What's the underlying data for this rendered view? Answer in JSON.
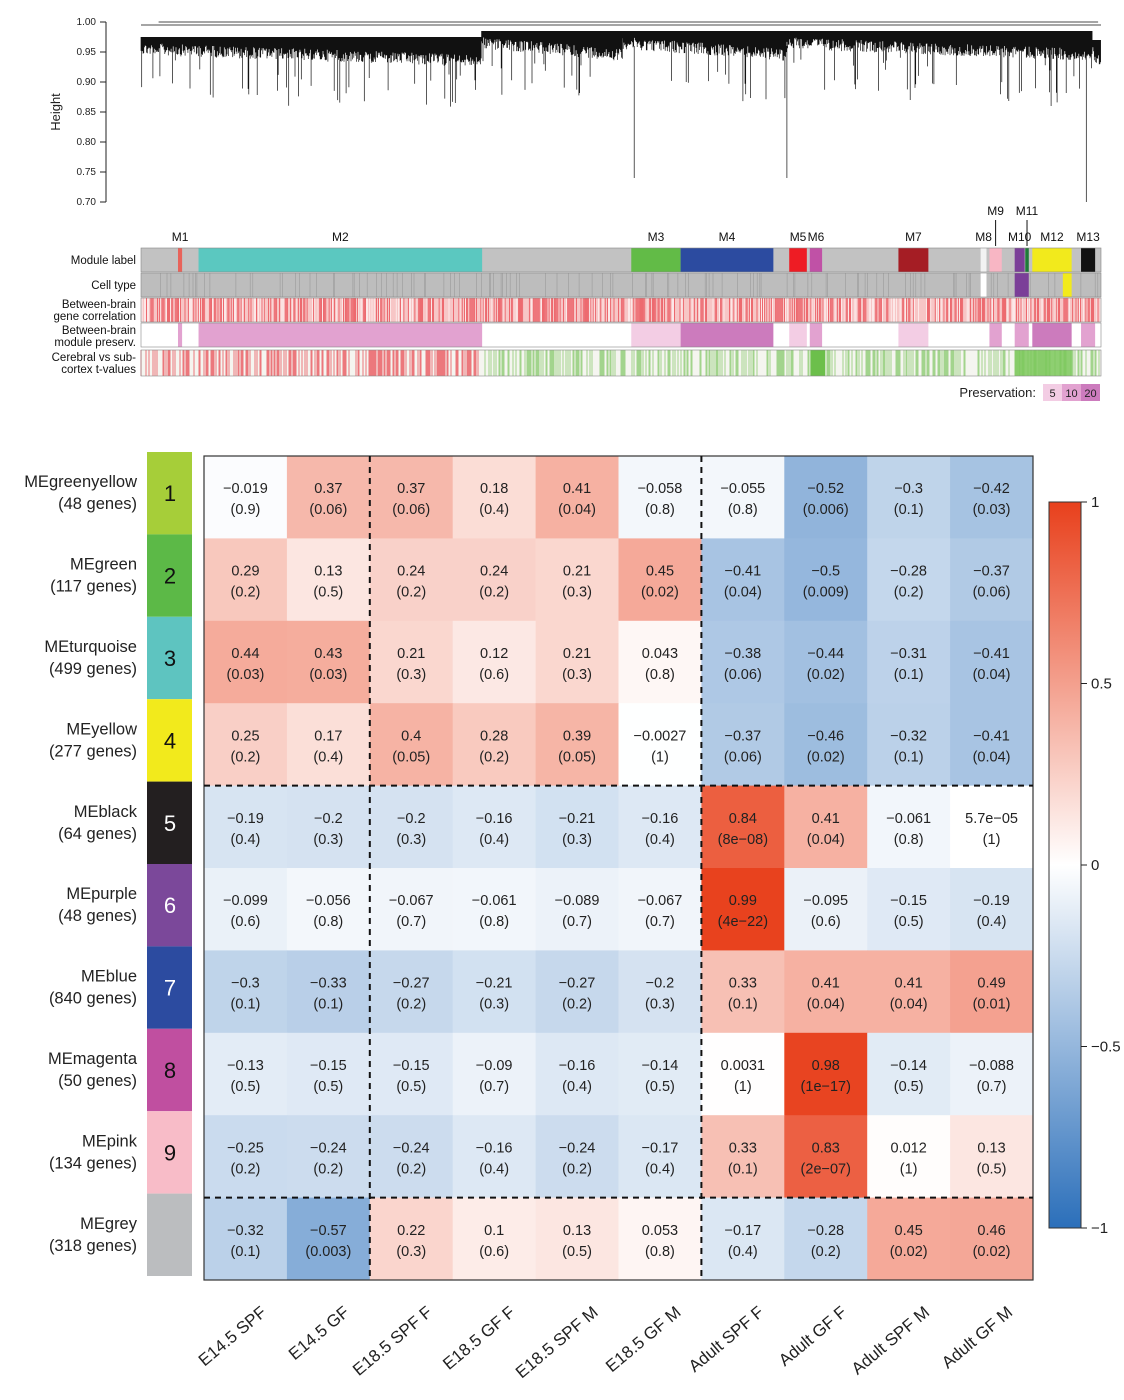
{
  "chart_data": [
    {
      "type": "dendrogram",
      "ylabel": "Height",
      "ylim": [
        0.7,
        1.0
      ],
      "yticks": [
        "0.70",
        "0.75",
        "0.80",
        "0.85",
        "0.90",
        "0.95",
        "1.00"
      ],
      "modules": [
        {
          "label": "M1",
          "color": "#e8635a",
          "frac": [
            0.063,
            0.07
          ]
        },
        {
          "label": "M2",
          "color": "#5bc8c0",
          "frac": [
            0.098,
            0.581
          ]
        },
        {
          "label": "M3",
          "color": "#62bb47",
          "frac": [
            0.835,
            0.919
          ]
        },
        {
          "label": "M4",
          "color": "#2c4ba0",
          "frac": [
            0.919,
            1.077
          ]
        },
        {
          "label": "M5",
          "color": "#ee1c24",
          "frac": [
            1.104,
            1.134
          ]
        },
        {
          "label": "M6",
          "color": "#c051a6",
          "frac": [
            1.139,
            1.16
          ]
        },
        {
          "label": "M7",
          "color": "#a51d24",
          "frac": [
            1.29,
            1.341
          ]
        },
        {
          "label": "M8",
          "color": "#f2f2f2",
          "frac": [
            1.43,
            1.44
          ]
        },
        {
          "label": "M9",
          "color": "#f8b6c4",
          "frac": [
            1.445,
            1.466
          ]
        },
        {
          "label": "M10",
          "color": "#7b3f98",
          "frac": [
            1.488,
            1.505
          ]
        },
        {
          "label": "M11",
          "color": "#1e7b3a",
          "frac": [
            1.506,
            1.512
          ]
        },
        {
          "label": "M12",
          "color": "#f2ea1c",
          "frac": [
            1.518,
            1.585
          ]
        },
        {
          "label": "M13",
          "color": "#111111",
          "frac": [
            1.601,
            1.625
          ]
        }
      ],
      "track_labels": [
        "Module label",
        "Cell type",
        "Between-brain\ngene correlation",
        "Between-brain\nmodule preserv.",
        "Cerebral vs sub-\ncortex t-values"
      ],
      "preservation_legend": {
        "title": "Preservation:",
        "levels": [
          "5",
          "10",
          "20"
        ],
        "colors": [
          "#f3cde4",
          "#e2a2d0",
          "#cc7bbd"
        ]
      }
    },
    {
      "type": "heatmap",
      "rows": [
        {
          "name": "MEgreenyellow",
          "genes": "(48 genes)",
          "num": "1",
          "color": "#a6ce39"
        },
        {
          "name": "MEgreen",
          "genes": "(117 genes)",
          "num": "2",
          "color": "#5cb947"
        },
        {
          "name": "MEturquoise",
          "genes": "(499 genes)",
          "num": "3",
          "color": "#5ec4c0"
        },
        {
          "name": "MEyellow",
          "genes": "(277 genes)",
          "num": "4",
          "color": "#f2ea1c"
        },
        {
          "name": "MEblack",
          "genes": "(64 genes)",
          "num": "5",
          "color": "#231f20"
        },
        {
          "name": "MEpurple",
          "genes": "(48 genes)",
          "num": "6",
          "color": "#7b489a"
        },
        {
          "name": "MEblue",
          "genes": "(840 genes)",
          "num": "7",
          "color": "#2c4ba0"
        },
        {
          "name": "MEmagenta",
          "genes": "(50 genes)",
          "num": "8",
          "color": "#c04fa0"
        },
        {
          "name": "MEpink",
          "genes": "(134 genes)",
          "num": "9",
          "color": "#f8bcc8"
        },
        {
          "name": "MEgrey",
          "genes": "(318 genes)",
          "num": "",
          "color": "#bbbdbf"
        }
      ],
      "columns": [
        "E14.5 SPF",
        "E14.5 GF",
        "E18.5 SPF F",
        "E18.5 GF F",
        "E18.5 SPF M",
        "E18.5 GF M",
        "Adult SPF F",
        "Adult GF F",
        "Adult SPF M",
        "Adult GF M"
      ],
      "values": [
        [
          -0.019,
          0.37,
          0.37,
          0.18,
          0.41,
          -0.058,
          -0.055,
          -0.52,
          -0.3,
          -0.42
        ],
        [
          0.29,
          0.13,
          0.24,
          0.24,
          0.21,
          0.45,
          -0.41,
          -0.5,
          -0.28,
          -0.37
        ],
        [
          0.44,
          0.43,
          0.21,
          0.12,
          0.21,
          0.043,
          -0.38,
          -0.44,
          -0.31,
          -0.41
        ],
        [
          0.25,
          0.17,
          0.4,
          0.28,
          0.39,
          -0.0027,
          -0.37,
          -0.46,
          -0.32,
          -0.41
        ],
        [
          -0.19,
          -0.2,
          -0.2,
          -0.16,
          -0.21,
          -0.16,
          0.84,
          0.41,
          -0.061,
          5.7e-05
        ],
        [
          -0.099,
          -0.056,
          -0.067,
          -0.061,
          -0.089,
          -0.067,
          0.99,
          -0.095,
          -0.15,
          -0.19
        ],
        [
          -0.3,
          -0.33,
          -0.27,
          -0.21,
          -0.27,
          -0.2,
          0.33,
          0.41,
          0.41,
          0.49
        ],
        [
          -0.13,
          -0.15,
          -0.15,
          -0.09,
          -0.16,
          -0.14,
          0.0031,
          0.98,
          -0.14,
          -0.088
        ],
        [
          -0.25,
          -0.24,
          -0.24,
          -0.16,
          -0.24,
          -0.17,
          0.33,
          0.83,
          0.012,
          0.13
        ],
        [
          -0.32,
          -0.57,
          0.22,
          0.1,
          0.13,
          0.053,
          -0.17,
          -0.28,
          0.45,
          0.46
        ]
      ],
      "value_labels": [
        [
          "−0.019",
          "0.37",
          "0.37",
          "0.18",
          "0.41",
          "−0.058",
          "−0.055",
          "−0.52",
          "−0.3",
          "−0.42"
        ],
        [
          "0.29",
          "0.13",
          "0.24",
          "0.24",
          "0.21",
          "0.45",
          "−0.41",
          "−0.5",
          "−0.28",
          "−0.37"
        ],
        [
          "0.44",
          "0.43",
          "0.21",
          "0.12",
          "0.21",
          "0.043",
          "−0.38",
          "−0.44",
          "−0.31",
          "−0.41"
        ],
        [
          "0.25",
          "0.17",
          "0.4",
          "0.28",
          "0.39",
          "−0.0027",
          "−0.37",
          "−0.46",
          "−0.32",
          "−0.41"
        ],
        [
          "−0.19",
          "−0.2",
          "−0.2",
          "−0.16",
          "−0.21",
          "−0.16",
          "0.84",
          "0.41",
          "−0.061",
          "5.7e−05"
        ],
        [
          "−0.099",
          "−0.056",
          "−0.067",
          "−0.061",
          "−0.089",
          "−0.067",
          "0.99",
          "−0.095",
          "−0.15",
          "−0.19"
        ],
        [
          "−0.3",
          "−0.33",
          "−0.27",
          "−0.21",
          "−0.27",
          "−0.2",
          "0.33",
          "0.41",
          "0.41",
          "0.49"
        ],
        [
          "−0.13",
          "−0.15",
          "−0.15",
          "−0.09",
          "−0.16",
          "−0.14",
          "0.0031",
          "0.98",
          "−0.14",
          "−0.088"
        ],
        [
          "−0.25",
          "−0.24",
          "−0.24",
          "−0.16",
          "−0.24",
          "−0.17",
          "0.33",
          "0.83",
          "0.012",
          "0.13"
        ],
        [
          "−0.32",
          "−0.57",
          "0.22",
          "0.1",
          "0.13",
          "0.053",
          "−0.17",
          "−0.28",
          "0.45",
          "0.46"
        ]
      ],
      "pvalues": [
        [
          "(0.9)",
          "(0.06)",
          "(0.06)",
          "(0.4)",
          "(0.04)",
          "(0.8)",
          "(0.8)",
          "(0.006)",
          "(0.1)",
          "(0.03)"
        ],
        [
          "(0.2)",
          "(0.5)",
          "(0.2)",
          "(0.2)",
          "(0.3)",
          "(0.02)",
          "(0.04)",
          "(0.009)",
          "(0.2)",
          "(0.06)"
        ],
        [
          "(0.03)",
          "(0.03)",
          "(0.3)",
          "(0.6)",
          "(0.3)",
          "(0.8)",
          "(0.06)",
          "(0.02)",
          "(0.1)",
          "(0.04)"
        ],
        [
          "(0.2)",
          "(0.4)",
          "(0.05)",
          "(0.2)",
          "(0.05)",
          "(1)",
          "(0.06)",
          "(0.02)",
          "(0.1)",
          "(0.04)"
        ],
        [
          "(0.4)",
          "(0.3)",
          "(0.3)",
          "(0.4)",
          "(0.3)",
          "(0.4)",
          "(8e−08)",
          "(0.04)",
          "(0.8)",
          "(1)"
        ],
        [
          "(0.6)",
          "(0.8)",
          "(0.7)",
          "(0.8)",
          "(0.7)",
          "(0.7)",
          "(4e−22)",
          "(0.6)",
          "(0.5)",
          "(0.4)"
        ],
        [
          "(0.1)",
          "(0.1)",
          "(0.2)",
          "(0.3)",
          "(0.2)",
          "(0.3)",
          "(0.1)",
          "(0.04)",
          "(0.04)",
          "(0.01)"
        ],
        [
          "(0.5)",
          "(0.5)",
          "(0.5)",
          "(0.7)",
          "(0.4)",
          "(0.5)",
          "(1)",
          "(1e−17)",
          "(0.5)",
          "(0.7)"
        ],
        [
          "(0.2)",
          "(0.2)",
          "(0.2)",
          "(0.4)",
          "(0.2)",
          "(0.4)",
          "(0.1)",
          "(2e−07)",
          "(1)",
          "(0.5)"
        ],
        [
          "(0.1)",
          "(0.003)",
          "(0.3)",
          "(0.6)",
          "(0.5)",
          "(0.8)",
          "(0.4)",
          "(0.2)",
          "(0.02)",
          "(0.02)"
        ]
      ],
      "col_dividers_after": [
        2,
        6
      ],
      "row_dividers_after": [
        4,
        9
      ],
      "colorbar": {
        "ticks": [
          "1",
          "0.5",
          "0",
          "−0.5",
          "−1"
        ],
        "range": [
          -1,
          1
        ],
        "high_color": "#e8401c",
        "mid_color": "#ffffff",
        "low_color": "#2b6fba"
      }
    }
  ]
}
